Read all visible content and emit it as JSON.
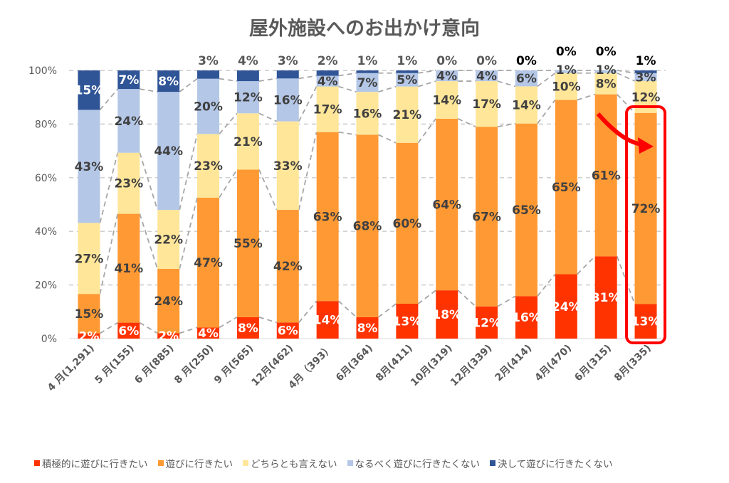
{
  "chart_data": {
    "type": "bar",
    "stacked": "percent",
    "title": "屋外施設へのお出かけ意向",
    "categories": [
      "4 月(1,291)",
      "5 月(155)",
      "6 月(885)",
      "8 月(250)",
      "9 月(565)",
      "12月(462)",
      "4月（393）",
      "6月(364)",
      "8月(411)",
      "10月(319)",
      "12月(339)",
      "2月(414)",
      "4月(470)",
      "6月(315)",
      "8月(335)"
    ],
    "series": [
      {
        "name": "積極的に遊びに行きたい",
        "color": "#FF3300",
        "values": [
          2,
          6,
          2,
          4,
          8,
          6,
          14,
          8,
          13,
          18,
          12,
          16,
          24,
          31,
          13
        ]
      },
      {
        "name": "遊びに行きたい",
        "color": "#FF9933",
        "values": [
          15,
          41,
          24,
          47,
          55,
          42,
          63,
          68,
          60,
          64,
          67,
          65,
          65,
          61,
          72
        ]
      },
      {
        "name": "どちらとも言えない",
        "color": "#FFE699",
        "values": [
          27,
          23,
          22,
          23,
          21,
          33,
          17,
          16,
          21,
          14,
          17,
          14,
          10,
          8,
          12
        ]
      },
      {
        "name": "なるべく遊びに行きたくない",
        "color": "#B4C7E7",
        "values": [
          43,
          24,
          44,
          20,
          12,
          16,
          4,
          7,
          5,
          4,
          4,
          6,
          1,
          1,
          3
        ]
      },
      {
        "name": "決して遊びに行きたくない",
        "color": "#2F5597",
        "values": [
          15,
          7,
          8,
          3,
          4,
          3,
          2,
          1,
          1,
          0,
          0,
          0,
          0,
          0,
          1
        ]
      }
    ],
    "y_ticks": [
      "0%",
      "20%",
      "40%",
      "60%",
      "80%",
      "100%"
    ],
    "ylim": [
      0,
      100
    ],
    "grid": true,
    "series_lines": true,
    "legend": "bottom",
    "highlight": {
      "category_index": 14,
      "color": "#FF0000",
      "arrow": true
    }
  }
}
